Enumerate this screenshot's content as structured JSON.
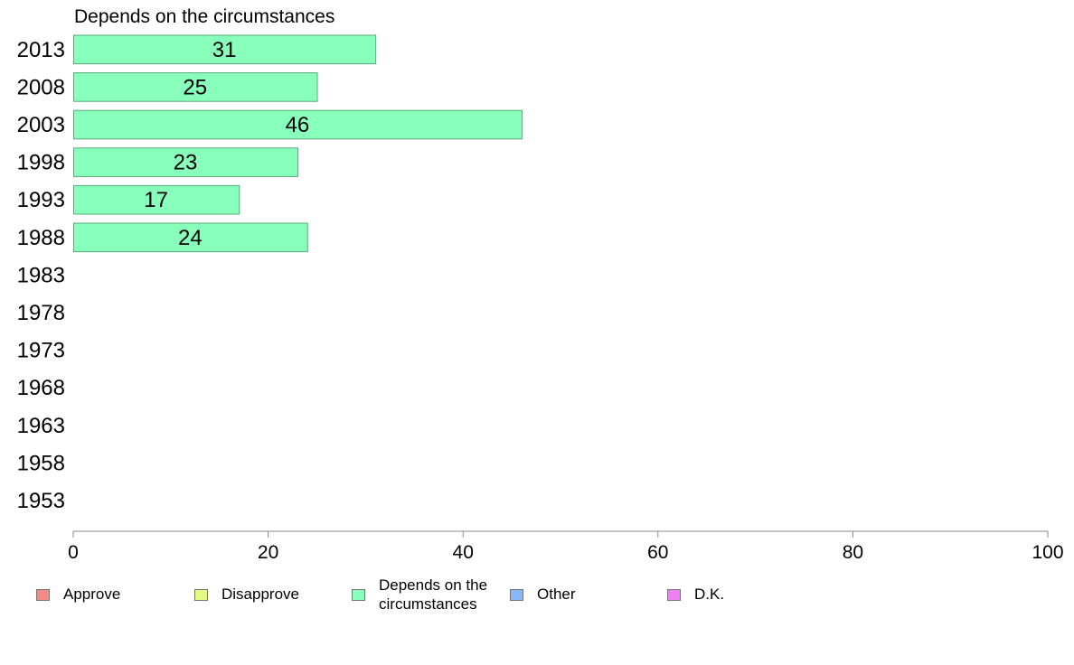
{
  "colors": {
    "approve": "#f48a86",
    "disapprove": "#e2fa84",
    "depends": "#88ffbb",
    "other": "#88b8f8",
    "dk": "#ee80f2",
    "bar_stroke": "#5aa87c",
    "axis": "#888888"
  },
  "chart_data": {
    "type": "bar",
    "orientation": "horizontal",
    "title": "Depends on the circumstances",
    "categories": [
      "2013",
      "2008",
      "2003",
      "1998",
      "1993",
      "1988",
      "1983",
      "1978",
      "1973",
      "1968",
      "1963",
      "1958",
      "1953"
    ],
    "series": [
      {
        "name": "Depends on the circumstances",
        "values": [
          31,
          25,
          46,
          23,
          17,
          24,
          null,
          null,
          null,
          null,
          null,
          null,
          null
        ],
        "labels": [
          "31",
          "25",
          "46",
          "23",
          "17",
          "24",
          "",
          "",
          "",
          "",
          "",
          "",
          ""
        ]
      }
    ],
    "xlim": [
      0,
      100
    ],
    "xticks": [
      "0",
      "20",
      "40",
      "60",
      "80",
      "100"
    ],
    "grid": false,
    "legend_position": "bottom"
  },
  "legend": [
    {
      "key": "approve",
      "label": "Approve"
    },
    {
      "key": "disapprove",
      "label": "Disapprove"
    },
    {
      "key": "depends",
      "label": "Depends on the circumstances"
    },
    {
      "key": "other",
      "label": "Other"
    },
    {
      "key": "dk",
      "label": "D.K."
    }
  ]
}
